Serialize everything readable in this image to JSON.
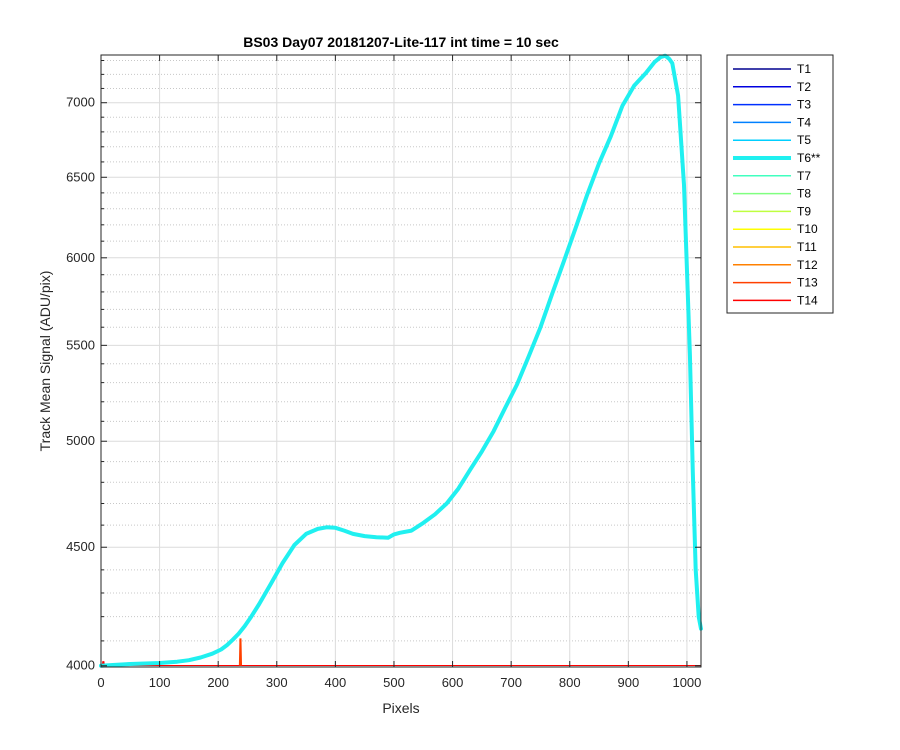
{
  "chart_data": {
    "type": "line",
    "title": "BS03 Day07 20181207-Lite-117 int time = 10 sec",
    "xlabel": "Pixels",
    "ylabel": "Track Mean Signal (ADU/pix)",
    "xlim": [
      0,
      1024
    ],
    "ylim": [
      3995,
      7340
    ],
    "y_scale": "log",
    "x_ticks": [
      0,
      100,
      200,
      300,
      400,
      500,
      600,
      700,
      800,
      900,
      1000
    ],
    "y_ticks": [
      4000,
      4500,
      5000,
      5500,
      6000,
      6500,
      7000
    ],
    "grid": true,
    "legend_placement": "outside-right",
    "series": [
      {
        "name": "T1",
        "color": "#00008f",
        "highlight": false
      },
      {
        "name": "T2",
        "color": "#0000df",
        "highlight": false
      },
      {
        "name": "T3",
        "color": "#0030ff",
        "highlight": false
      },
      {
        "name": "T4",
        "color": "#0080ff",
        "highlight": false
      },
      {
        "name": "T5",
        "color": "#00cfff",
        "highlight": false
      },
      {
        "name": "T6**",
        "color": "#20f0f0",
        "highlight": true,
        "x": [
          0,
          20,
          50,
          100,
          130,
          150,
          170,
          190,
          205,
          215,
          225,
          235,
          245,
          255,
          270,
          290,
          310,
          330,
          350,
          370,
          385,
          400,
          415,
          430,
          450,
          470,
          490,
          500,
          510,
          530,
          550,
          570,
          590,
          610,
          630,
          650,
          670,
          690,
          710,
          730,
          750,
          770,
          790,
          810,
          830,
          850,
          870,
          890,
          910,
          930,
          945,
          955,
          963,
          970,
          975,
          985,
          995,
          1005,
          1010,
          1015,
          1020,
          1024
        ],
        "y": [
          4000,
          4003,
          4007,
          4011,
          4016,
          4022,
          4033,
          4048,
          4065,
          4083,
          4105,
          4130,
          4160,
          4195,
          4253,
          4340,
          4430,
          4510,
          4560,
          4583,
          4590,
          4588,
          4575,
          4560,
          4550,
          4545,
          4543,
          4558,
          4565,
          4575,
          4610,
          4650,
          4700,
          4770,
          4860,
          4950,
          5050,
          5170,
          5290,
          5440,
          5600,
          5790,
          5980,
          6180,
          6390,
          6590,
          6770,
          6980,
          7120,
          7210,
          7290,
          7325,
          7335,
          7310,
          7280,
          7050,
          6450,
          5450,
          4850,
          4400,
          4200,
          4150
        ]
      },
      {
        "name": "T7",
        "color": "#40ffbf",
        "highlight": false
      },
      {
        "name": "T8",
        "color": "#80ff80",
        "highlight": false
      },
      {
        "name": "T9",
        "color": "#bfff40",
        "highlight": false
      },
      {
        "name": "T10",
        "color": "#ffff00",
        "highlight": false
      },
      {
        "name": "T11",
        "color": "#ffbf00",
        "highlight": false
      },
      {
        "name": "T12",
        "color": "#ff8000",
        "highlight": false
      },
      {
        "name": "T13",
        "color": "#ff4000",
        "highlight": false
      },
      {
        "name": "T14",
        "color": "#ff0000",
        "highlight": false
      }
    ],
    "spikes": [
      {
        "series": "T13",
        "x": 238,
        "y": 4110
      },
      {
        "series": "T14",
        "x": 4,
        "y": 4018
      }
    ]
  }
}
